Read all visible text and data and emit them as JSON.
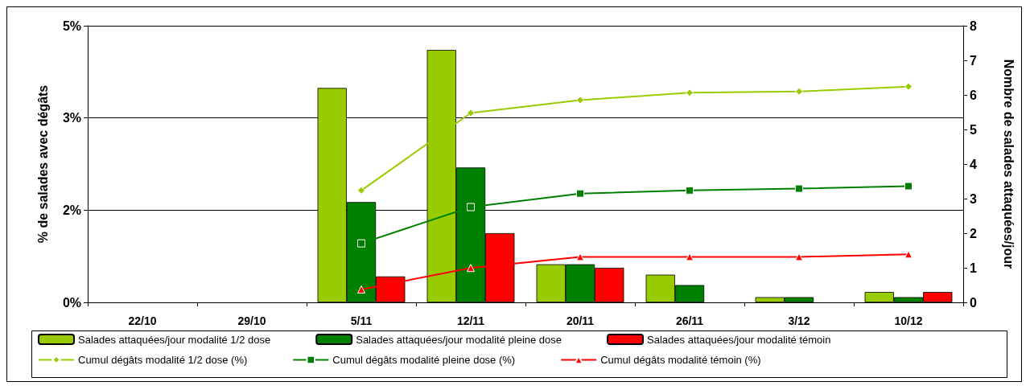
{
  "chart_data": {
    "type": "bar",
    "ylabel": "% de salades avec dégâts",
    "y2label": "Nombre de salades attaquées/jour",
    "categories": [
      "22/10",
      "29/10",
      "5/11",
      "12/11",
      "20/11",
      "26/11",
      "3/12",
      "10/12"
    ],
    "ylim": [
      0,
      4.5
    ],
    "yticks": [
      {
        "value": 0,
        "label": "0%"
      },
      {
        "value": 1.5,
        "label": "2%"
      },
      {
        "value": 3,
        "label": "3%"
      },
      {
        "value": 4.5,
        "label": "5%"
      }
    ],
    "y2lim": [
      0,
      8
    ],
    "y2ticks": [
      0,
      1,
      2,
      3,
      4,
      5,
      6,
      7,
      8
    ],
    "grid": "y",
    "legend": "bottom",
    "series": [
      {
        "name": "Salades attaquées/jour modalité 1/2 dose",
        "axis": "y2",
        "color": "#99cc00",
        "values": [
          null,
          null,
          6.2,
          7.3,
          1.1,
          0.8,
          0.15,
          0.3
        ]
      },
      {
        "name": "Salades attaquées/jour modalité pleine dose",
        "axis": "y2",
        "color": "#008000",
        "values": [
          null,
          null,
          2.9,
          3.9,
          1.1,
          0.5,
          0.15,
          0.15
        ]
      },
      {
        "name": "Salades attaquées/jour modalité témoin",
        "axis": "y2",
        "color": "#ff0000",
        "values": [
          null,
          null,
          0.75,
          2,
          1,
          null,
          null,
          0.3
        ]
      },
      {
        "name": "Cumul dégâts modalité 1/2 dose (%)",
        "type": "line",
        "color": "#99cc00",
        "marker": "diamond",
        "values": [
          null,
          null,
          1.82,
          3.08,
          3.29,
          3.41,
          3.43,
          3.51
        ]
      },
      {
        "name": "Cumul dégâts modalité pleine dose (%)",
        "type": "line",
        "color": "#008000",
        "marker": "square",
        "values": [
          null,
          null,
          0.96,
          1.55,
          1.77,
          1.82,
          1.85,
          1.89
        ]
      },
      {
        "name": "Cumul dégâts modalité témoin (%)",
        "type": "line",
        "color": "#ff0000",
        "marker": "triangle",
        "values": [
          null,
          null,
          0.21,
          0.56,
          0.74,
          0.74,
          0.74,
          0.78
        ]
      }
    ]
  }
}
